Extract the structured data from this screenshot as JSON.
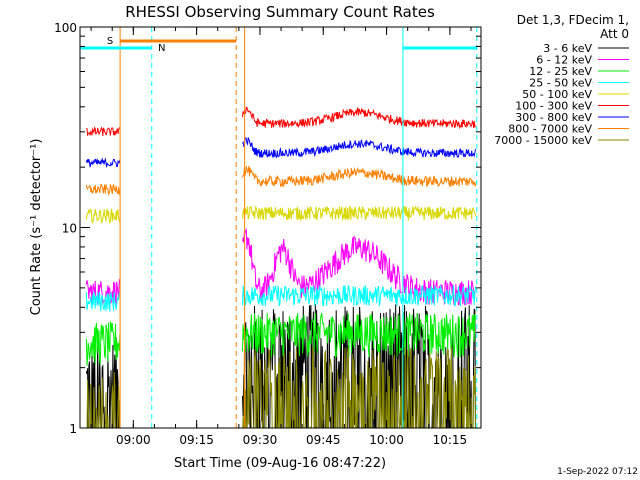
{
  "chart_data": {
    "type": "line",
    "title": "RHESSI Observing Summary Count Rates",
    "xlabel": "Start Time (09-Aug-16 08:47:22)",
    "ylabel": "Count Rate (s⁻¹ detector⁻¹)",
    "yscale": "log",
    "ylim": [
      1,
      100
    ],
    "x_units": "minutes after 08:47:22",
    "xlim": [
      0,
      95
    ],
    "x_ticks": [
      {
        "x": 12.63,
        "label": "09:00"
      },
      {
        "x": 27.63,
        "label": "09:15"
      },
      {
        "x": 42.63,
        "label": "09:30"
      },
      {
        "x": 57.63,
        "label": "09:45"
      },
      {
        "x": 72.63,
        "label": "10:00"
      },
      {
        "x": 87.63,
        "label": "10:15"
      }
    ],
    "y_ticks": [
      {
        "y": 1,
        "label": "1"
      },
      {
        "y": 10,
        "label": "10"
      },
      {
        "y": 100,
        "label": "100"
      }
    ],
    "legend_header": [
      "Det 1,3, FDecim 1,",
      "Att 0"
    ],
    "legend_position": "right",
    "gap": [
      9.5,
      38.5
    ],
    "series": [
      {
        "name": "3 - 6 keV",
        "color": "#000000",
        "base_before": 1.5,
        "base_after": 2.2,
        "noise": 0.9,
        "bump": 0
      },
      {
        "name": "6 - 12 keV",
        "color": "#ff00ff",
        "base_before": 4.8,
        "base_after": 4.8,
        "noise": 0.15,
        "bump": 3.5
      },
      {
        "name": "12 - 25 keV",
        "color": "#00ee00",
        "base_before": 2.7,
        "base_after": 3.0,
        "noise": 0.25,
        "bump": 0
      },
      {
        "name": "25 - 50 keV",
        "color": "#00ffff",
        "base_before": 4.3,
        "base_after": 4.6,
        "noise": 0.12,
        "bump": 0
      },
      {
        "name": "50 - 100 keV",
        "color": "#d8d800",
        "base_before": 11.5,
        "base_after": 11.8,
        "noise": 0.08,
        "bump": 0
      },
      {
        "name": "100 - 300 keV",
        "color": "#ff0000",
        "base_before": 30.0,
        "base_after": 33.0,
        "noise": 0.05,
        "bump": 5
      },
      {
        "name": "300 - 800 keV",
        "color": "#0000ff",
        "base_before": 21.0,
        "base_after": 23.5,
        "noise": 0.05,
        "bump": 3
      },
      {
        "name": "800 - 7000 keV",
        "color": "#ff8000",
        "base_before": 15.5,
        "base_after": 17.0,
        "noise": 0.06,
        "bump": 2
      },
      {
        "name": "7000 - 15000 keV",
        "color": "#888800",
        "base_before": 1.2,
        "base_after": 1.6,
        "noise": 0.6,
        "bump": 0
      }
    ],
    "markers": [
      {
        "label": "S",
        "color": "#ff8000",
        "style": "solid",
        "x_start": 9.5,
        "x_end": 37
      },
      {
        "label": "N",
        "color": "#00ffff",
        "style": "solid",
        "x_start": 0,
        "x_end": 17
      }
    ],
    "vlines": [
      {
        "x": 9.5,
        "color": "#ff8000",
        "style": "solid"
      },
      {
        "x": 17,
        "color": "#00ffff",
        "style": "dashed"
      },
      {
        "x": 37,
        "color": "#ff8000",
        "style": "dashed"
      },
      {
        "x": 39,
        "color": "#ff8000",
        "style": "solid"
      },
      {
        "x": 76.5,
        "color": "#00ffff",
        "style": "solid"
      },
      {
        "x": 94,
        "color": "#00ffff",
        "style": "dashed"
      }
    ],
    "top_segments": [
      {
        "color": "#00ffff",
        "x_start": 76.5,
        "x_end": 94
      }
    ]
  },
  "footer_date": "1-Sep-2022 07:12"
}
